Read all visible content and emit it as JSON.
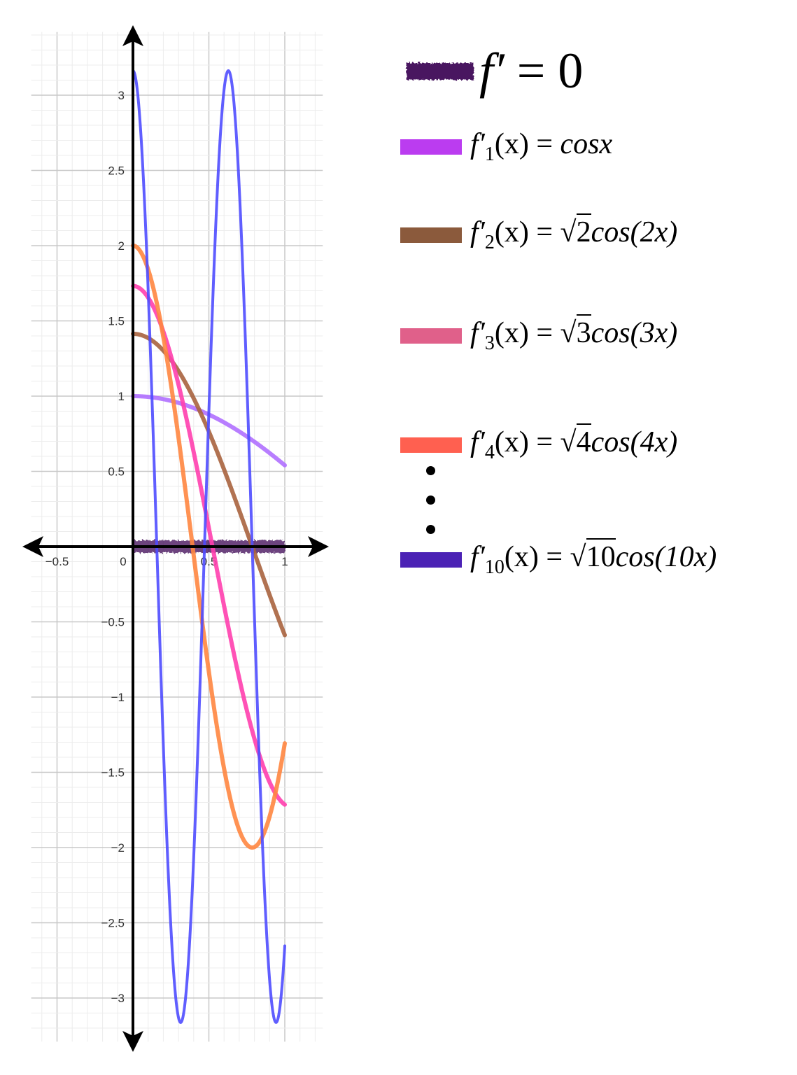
{
  "chart_data": {
    "type": "line",
    "title": "",
    "xlabel": "",
    "ylabel": "",
    "xlim": [
      -0.67,
      1.25
    ],
    "ylim": [
      -3.29,
      3.42
    ],
    "grid": true,
    "grid_major": 0.5,
    "grid_minor": 0.1,
    "x_ticks": [
      "−0.5",
      "0",
      "0.5",
      "1"
    ],
    "x_tick_values": [
      -0.5,
      0,
      0.5,
      1
    ],
    "y_ticks": [
      "3",
      "2.5",
      "2",
      "1.5",
      "1",
      "0.5",
      "−0.5",
      "−1",
      "−1.5",
      "−2",
      "−2.5",
      "−3"
    ],
    "y_tick_values": [
      3,
      2.5,
      2,
      1.5,
      1,
      0.5,
      -0.5,
      -1,
      -1.5,
      -2,
      -2.5,
      -3
    ],
    "domain": [
      0,
      1
    ],
    "zero_line": {
      "label": "f′ = 0",
      "color": "#4a1560",
      "y": 0,
      "x_range": [
        0,
        1
      ]
    },
    "series": [
      {
        "formula": "cos(x)",
        "n": 1,
        "amplitude": 1,
        "frequency": 1,
        "color": "#b070ff",
        "legend_color": "#bb3cf0"
      },
      {
        "formula": "√2 cos(2x)",
        "n": 2,
        "amplitude": 1.4142,
        "frequency": 2,
        "color": "#a8633e",
        "legend_color": "#8b5a3c"
      },
      {
        "formula": "√3 cos(3x)",
        "n": 3,
        "amplitude": 1.7321,
        "frequency": 3,
        "color": "#ff3fae",
        "legend_color": "#e0608a"
      },
      {
        "formula": "√4 cos(4x)",
        "n": 4,
        "amplitude": 2,
        "frequency": 4,
        "color": "#ff8640",
        "legend_color": "#ff6050"
      },
      {
        "formula": "√10 cos(10x)",
        "n": 10,
        "amplitude": 3.1623,
        "frequency": 10,
        "color": "#4f4cff",
        "legend_color": "#4b22b5"
      }
    ]
  },
  "legend": {
    "title": {
      "lhs": "f′",
      "eq": " = ",
      "rhs": "0"
    },
    "entries": [
      {
        "f": "f′",
        "sub": "1",
        "mid": "(x) = ",
        "sqrt": "",
        "rest": "cosx"
      },
      {
        "f": "f′",
        "sub": "2",
        "mid": "(x) = ",
        "sqrt": "2",
        "rest": "cos(2x)"
      },
      {
        "f": "f′",
        "sub": "3",
        "mid": "(x) = ",
        "sqrt": "3",
        "rest": "cos(3x)"
      },
      {
        "f": "f′",
        "sub": "4",
        "mid": "(x) = ",
        "sqrt": "4",
        "rest": "cos(4x)"
      },
      {
        "f": "f′",
        "sub": "10",
        "mid": "(x) = ",
        "sqrt": "10",
        "rest": "cos(10x)"
      }
    ]
  }
}
